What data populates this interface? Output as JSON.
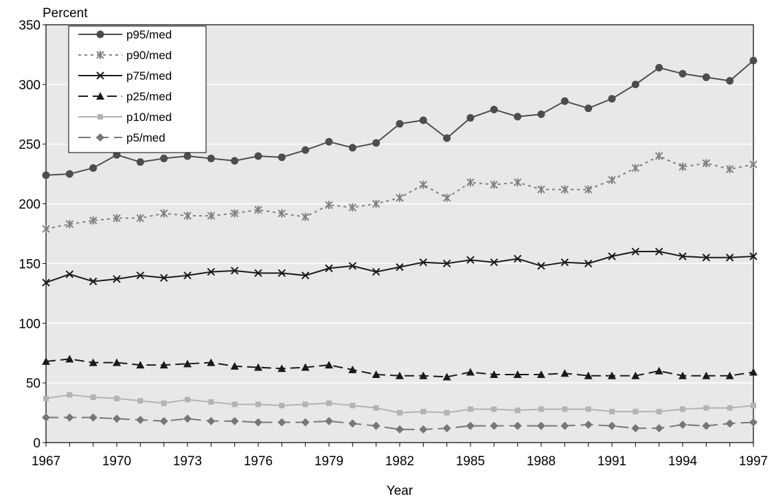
{
  "chart_data": {
    "type": "line",
    "title": "",
    "xlabel": "Year",
    "ylabel": "Percent",
    "xlim": [
      1967,
      1997
    ],
    "ylim": [
      0,
      350
    ],
    "x_ticks": [
      "1967",
      "1970",
      "1973",
      "1976",
      "1979",
      "1982",
      "1985",
      "1988",
      "1991",
      "1994",
      "1997"
    ],
    "y_ticks": [
      "0",
      "50",
      "100",
      "150",
      "200",
      "250",
      "300",
      "350"
    ],
    "grid": true,
    "legend_position": "top-left",
    "plot_background": "#e8e8e8",
    "x": [
      1967,
      1968,
      1969,
      1970,
      1971,
      1972,
      1973,
      1974,
      1975,
      1976,
      1977,
      1978,
      1979,
      1980,
      1981,
      1982,
      1983,
      1984,
      1985,
      1986,
      1987,
      1988,
      1989,
      1990,
      1991,
      1992,
      1993,
      1994,
      1995,
      1996,
      1997
    ],
    "series": [
      {
        "name": "p95/med",
        "color": "#4d4d4d",
        "dash": "solid",
        "marker": "circle",
        "values": [
          224,
          225,
          230,
          241,
          235,
          238,
          240,
          238,
          236,
          240,
          239,
          245,
          252,
          247,
          251,
          267,
          270,
          255,
          272,
          279,
          273,
          275,
          286,
          280,
          288,
          300,
          314,
          309,
          306,
          303,
          320
        ]
      },
      {
        "name": "p90/med",
        "color": "#808080",
        "dash": "dotted",
        "marker": "asterisk",
        "values": [
          179,
          183,
          186,
          188,
          188,
          192,
          190,
          190,
          192,
          195,
          192,
          189,
          199,
          197,
          200,
          205,
          216,
          205,
          218,
          216,
          218,
          212,
          212,
          212,
          220,
          230,
          240,
          231,
          234,
          229,
          233
        ]
      },
      {
        "name": "p75/med",
        "color": "#1a1a1a",
        "dash": "solid",
        "marker": "x",
        "values": [
          134,
          141,
          135,
          137,
          140,
          138,
          140,
          143,
          144,
          142,
          142,
          140,
          146,
          148,
          143,
          147,
          151,
          150,
          153,
          151,
          154,
          148,
          151,
          150,
          156,
          160,
          160,
          156,
          155,
          155,
          156
        ]
      },
      {
        "name": "p25/med",
        "color": "#1a1a1a",
        "dash": "dashed",
        "marker": "triangle",
        "values": [
          68,
          70,
          67,
          67,
          65,
          65,
          66,
          67,
          64,
          63,
          62,
          63,
          65,
          61,
          57,
          56,
          56,
          55,
          59,
          57,
          57,
          57,
          58,
          56,
          56,
          56,
          60,
          56,
          56,
          56,
          59
        ]
      },
      {
        "name": "p10/med",
        "color": "#b3b3b3",
        "dash": "solid",
        "marker": "square",
        "values": [
          37,
          40,
          38,
          37,
          35,
          33,
          36,
          34,
          32,
          32,
          31,
          32,
          33,
          31,
          29,
          25,
          26,
          25,
          28,
          28,
          27,
          28,
          28,
          28,
          26,
          26,
          26,
          28,
          29,
          29,
          31
        ]
      },
      {
        "name": "p5/med",
        "color": "#777777",
        "dash": "longdash",
        "marker": "diamond",
        "values": [
          21,
          21,
          21,
          20,
          19,
          18,
          20,
          18,
          18,
          17,
          17,
          17,
          18,
          16,
          14,
          11,
          11,
          12,
          14,
          14,
          14,
          14,
          14,
          15,
          14,
          12,
          12,
          15,
          14,
          16,
          17
        ]
      }
    ]
  }
}
